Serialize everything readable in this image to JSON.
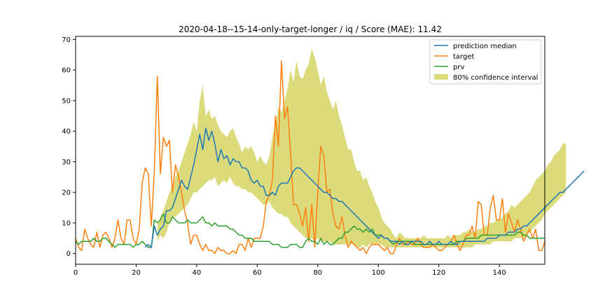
{
  "chart_data": {
    "type": "line",
    "title": "2020-04-18--15-14-only-target-longer / iq / Score (MAE): 11.42",
    "xlabel": "",
    "ylabel": "",
    "xlim": [
      0,
      155
    ],
    "ylim": [
      -3.5,
      71
    ],
    "xticks": [
      0,
      20,
      40,
      60,
      80,
      100,
      120,
      140
    ],
    "yticks": [
      0,
      10,
      20,
      30,
      40,
      50,
      60,
      70
    ],
    "legend_position": "top-right",
    "colors": {
      "median": "#1f77b4",
      "target": "#ff7f0e",
      "prv": "#2ca02c",
      "band": "#cccc44"
    },
    "legend": {
      "median": "prediction median",
      "target": "target",
      "prv": "prv",
      "band": "80% confidence interval"
    },
    "series": [
      {
        "name": "target",
        "x_start": 0,
        "values": [
          5,
          2,
          1,
          8,
          5,
          3,
          2,
          7,
          2,
          6,
          7,
          5,
          2,
          5,
          11,
          5,
          3,
          11,
          11,
          5,
          3,
          8,
          23,
          28,
          26,
          9,
          27,
          58,
          26,
          38,
          35,
          37,
          20,
          29,
          25,
          20,
          14,
          10,
          3,
          6,
          6,
          3,
          1,
          3,
          1,
          1,
          0,
          2,
          1,
          1,
          0,
          0,
          1,
          0,
          3,
          3,
          1,
          5,
          2,
          5,
          5,
          5,
          9,
          17,
          19,
          24,
          45,
          35,
          63,
          44,
          48,
          33,
          16,
          16,
          13,
          9,
          15,
          4,
          16,
          2,
          20,
          35,
          32,
          20,
          21,
          13,
          9,
          8,
          12,
          6,
          2,
          4,
          3,
          2,
          1,
          2,
          0,
          2,
          3,
          3,
          3,
          2,
          1,
          2,
          0,
          0,
          3,
          5,
          3,
          3,
          4,
          3,
          3,
          5,
          3,
          2,
          2,
          2,
          3,
          2,
          1,
          1,
          2,
          3,
          4,
          6,
          3,
          1,
          3,
          6,
          6,
          9,
          5,
          17,
          16,
          6,
          6,
          15,
          19,
          11,
          11,
          18,
          7,
          13,
          10,
          7,
          11,
          8,
          4,
          6,
          8,
          5,
          8,
          1,
          1,
          4
        ]
      },
      {
        "name": "prv",
        "x_start": 0,
        "values": [
          4,
          3,
          4,
          4,
          4,
          4,
          5,
          4,
          4,
          5,
          5,
          4,
          3,
          2,
          3,
          3,
          3,
          3,
          3,
          2,
          3,
          3,
          4,
          3,
          2,
          2,
          11,
          10,
          11,
          13,
          10,
          10,
          12,
          11,
          10,
          10,
          10,
          11,
          10,
          10,
          10,
          11,
          12,
          10,
          10,
          9,
          10,
          9,
          9,
          9,
          9,
          8,
          8,
          7,
          6,
          6,
          5,
          5,
          5,
          4,
          4,
          4,
          4,
          4,
          4,
          3,
          3,
          3,
          2,
          2,
          2,
          3,
          3,
          3,
          2,
          2,
          4,
          5,
          4,
          4,
          3,
          5,
          3,
          4,
          3,
          3,
          4,
          5,
          5,
          7,
          7,
          8,
          9,
          8,
          8,
          7,
          8,
          7,
          8,
          6,
          6,
          6,
          5,
          5,
          4,
          3,
          4,
          4,
          4,
          4,
          4,
          4,
          3,
          3,
          3,
          3,
          3,
          3,
          3,
          3,
          3,
          3,
          3,
          3,
          3,
          3,
          4,
          4,
          4,
          5,
          5,
          5,
          5,
          5,
          6,
          6,
          6,
          6,
          6,
          6,
          6,
          6,
          6,
          6,
          6,
          6,
          7,
          7,
          6,
          6,
          5,
          5,
          5,
          5,
          5,
          5
        ]
      },
      {
        "name": "prediction median",
        "x_start": 23,
        "values": [
          2,
          3,
          2,
          9,
          6,
          8,
          9,
          14,
          14,
          15,
          18,
          21,
          24,
          22,
          21,
          25,
          29,
          34,
          39,
          34,
          41,
          37,
          40,
          36,
          30,
          34,
          31,
          32,
          29,
          31,
          30,
          30,
          28,
          28,
          27,
          24,
          23,
          24,
          22,
          22,
          19,
          19,
          20,
          19,
          22,
          23,
          23,
          23,
          25,
          27,
          28,
          28,
          27,
          26,
          25,
          24,
          23,
          22,
          21,
          20,
          20,
          19,
          18,
          18,
          17,
          17,
          16,
          15,
          14,
          13,
          12,
          11,
          10,
          9,
          8,
          7,
          6,
          5,
          6,
          5,
          5,
          4,
          4,
          4,
          3,
          4,
          3,
          3,
          4,
          4,
          4,
          4,
          3,
          3,
          4,
          3,
          3,
          4,
          3,
          3,
          3,
          4,
          3,
          3,
          4,
          4,
          4,
          4,
          4,
          4,
          4,
          4,
          4,
          5,
          5,
          5,
          5,
          6,
          6,
          6,
          7,
          7,
          7,
          8,
          8,
          9,
          9,
          10,
          11,
          12,
          13,
          14,
          15,
          16,
          17,
          18,
          19,
          20,
          20,
          21,
          22,
          23,
          24,
          25,
          26,
          27
        ]
      }
    ],
    "confidence_interval": {
      "name": "80% confidence interval",
      "x_start": 27,
      "lower": [
        4,
        6,
        5,
        7,
        10,
        12,
        12,
        13,
        14,
        15,
        16,
        18,
        20,
        20,
        21,
        22,
        23,
        24,
        24,
        25,
        22,
        23,
        24,
        23,
        25,
        23,
        22,
        22,
        21,
        21,
        20,
        20,
        19,
        18,
        17,
        16,
        16,
        17,
        15,
        14,
        13,
        13,
        12,
        12,
        10,
        9,
        8,
        7,
        6,
        5,
        5,
        5,
        4,
        5,
        4,
        4,
        4,
        4,
        3,
        3,
        3,
        3,
        3,
        3,
        3,
        3,
        2,
        2,
        3,
        2,
        3,
        3,
        3,
        3,
        3,
        2,
        2,
        2,
        2,
        2,
        2,
        2,
        2,
        2,
        2,
        2,
        2,
        2,
        2,
        2,
        2,
        2,
        2,
        2,
        2,
        2,
        2,
        2,
        2,
        2,
        2,
        2,
        2,
        2,
        2,
        3,
        3,
        3,
        3,
        3,
        3,
        4,
        4,
        4,
        4,
        4,
        4,
        4,
        5,
        5,
        5,
        5,
        6,
        7,
        8,
        9,
        10,
        11,
        13,
        14,
        15,
        16,
        17,
        18,
        19,
        20
      ],
      "upper": [
        9,
        12,
        14,
        17,
        20,
        22,
        25,
        27,
        30,
        33,
        36,
        39,
        43,
        40,
        50,
        55,
        45,
        47,
        44,
        45,
        42,
        40,
        39,
        38,
        40,
        41,
        38,
        36,
        33,
        35,
        34,
        35,
        33,
        30,
        32,
        30,
        29,
        32,
        38,
        42,
        48,
        46,
        50,
        54,
        60,
        56,
        63,
        58,
        57,
        60,
        62,
        67,
        64,
        60,
        55,
        58,
        53,
        50,
        47,
        50,
        45,
        42,
        38,
        34,
        34,
        30,
        27,
        27,
        24,
        25,
        22,
        20,
        17,
        15,
        12,
        10,
        9,
        8,
        6,
        5,
        7,
        6,
        5,
        5,
        5,
        5,
        5,
        5,
        6,
        5,
        5,
        5,
        5,
        5,
        5,
        5,
        6,
        5,
        6,
        6,
        6,
        7,
        7,
        8,
        7,
        7,
        8,
        8,
        9,
        9,
        10,
        10,
        11,
        11,
        12,
        13,
        14,
        16,
        15,
        16,
        17,
        18,
        19,
        20,
        22,
        24,
        25,
        26,
        27,
        29,
        30,
        32,
        33,
        34,
        36,
        36
      ]
    }
  }
}
